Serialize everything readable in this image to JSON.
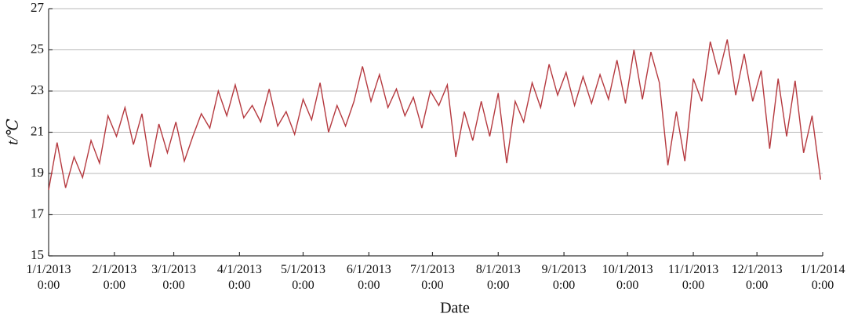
{
  "chart_data": {
    "type": "line",
    "xlabel": "Date",
    "ylabel": "t/℃",
    "x": [
      "2013-01-01",
      "2013-01-05",
      "2013-01-09",
      "2013-01-13",
      "2013-01-17",
      "2013-01-21",
      "2013-01-25",
      "2013-01-29",
      "2013-02-02",
      "2013-02-06",
      "2013-02-10",
      "2013-02-14",
      "2013-02-18",
      "2013-02-22",
      "2013-02-26",
      "2013-03-02",
      "2013-03-06",
      "2013-03-10",
      "2013-03-14",
      "2013-03-18",
      "2013-03-22",
      "2013-03-26",
      "2013-03-30",
      "2013-04-03",
      "2013-04-07",
      "2013-04-11",
      "2013-04-15",
      "2013-04-19",
      "2013-04-23",
      "2013-04-27",
      "2013-05-01",
      "2013-05-05",
      "2013-05-09",
      "2013-05-13",
      "2013-05-17",
      "2013-05-21",
      "2013-05-25",
      "2013-05-29",
      "2013-06-02",
      "2013-06-06",
      "2013-06-10",
      "2013-06-14",
      "2013-06-18",
      "2013-06-22",
      "2013-06-26",
      "2013-06-30",
      "2013-07-04",
      "2013-07-08",
      "2013-07-12",
      "2013-07-16",
      "2013-07-20",
      "2013-07-24",
      "2013-07-28",
      "2013-08-01",
      "2013-08-05",
      "2013-08-09",
      "2013-08-13",
      "2013-08-17",
      "2013-08-21",
      "2013-08-25",
      "2013-08-29",
      "2013-09-02",
      "2013-09-06",
      "2013-09-10",
      "2013-09-14",
      "2013-09-18",
      "2013-09-22",
      "2013-09-26",
      "2013-09-30",
      "2013-10-04",
      "2013-10-08",
      "2013-10-12",
      "2013-10-16",
      "2013-10-20",
      "2013-10-24",
      "2013-10-28",
      "2013-11-01",
      "2013-11-05",
      "2013-11-09",
      "2013-11-13",
      "2013-11-17",
      "2013-11-21",
      "2013-11-25",
      "2013-11-29",
      "2013-12-03",
      "2013-12-07",
      "2013-12-11",
      "2013-12-15",
      "2013-12-19",
      "2013-12-23",
      "2013-12-27",
      "2013-12-31"
    ],
    "series": [
      {
        "color": "#b5393f",
        "values": [
          18.2,
          20.5,
          18.3,
          19.8,
          18.8,
          20.6,
          19.5,
          21.8,
          20.8,
          22.2,
          20.4,
          21.9,
          19.3,
          21.4,
          20.0,
          21.5,
          19.6,
          20.8,
          21.9,
          21.2,
          23.0,
          21.8,
          23.3,
          21.7,
          22.3,
          21.5,
          23.1,
          21.3,
          22.0,
          20.9,
          22.6,
          21.6,
          23.4,
          21.0,
          22.3,
          21.3,
          22.5,
          24.2,
          22.5,
          23.8,
          22.2,
          23.1,
          21.8,
          22.7,
          21.2,
          23.0,
          22.3,
          23.3,
          19.8,
          22.0,
          20.6,
          22.5,
          20.8,
          22.9,
          19.5,
          22.5,
          21.5,
          23.4,
          22.2,
          24.3,
          22.8,
          23.9,
          22.3,
          23.7,
          22.4,
          23.8,
          22.6,
          24.5,
          22.4,
          25.0,
          22.6,
          24.9,
          23.4,
          19.4,
          22.0,
          19.6,
          23.6,
          22.5,
          25.4,
          23.8,
          25.5,
          22.8,
          24.8,
          22.5,
          24.0,
          20.2,
          23.6,
          20.8,
          23.5,
          20.0,
          21.8,
          18.7
        ]
      }
    ],
    "xlim": [
      "2013-01-01",
      "2014-01-01"
    ],
    "xticks": [
      {
        "value": "2013-01-01",
        "label": [
          "1/1/2013",
          "0:00"
        ]
      },
      {
        "value": "2013-02-01",
        "label": [
          "2/1/2013",
          "0:00"
        ]
      },
      {
        "value": "2013-03-01",
        "label": [
          "3/1/2013",
          "0:00"
        ]
      },
      {
        "value": "2013-04-01",
        "label": [
          "4/1/2013",
          "0:00"
        ]
      },
      {
        "value": "2013-05-01",
        "label": [
          "5/1/2013",
          "0:00"
        ]
      },
      {
        "value": "2013-06-01",
        "label": [
          "6/1/2013",
          "0:00"
        ]
      },
      {
        "value": "2013-07-01",
        "label": [
          "7/1/2013",
          "0:00"
        ]
      },
      {
        "value": "2013-08-01",
        "label": [
          "8/1/2013",
          "0:00"
        ]
      },
      {
        "value": "2013-09-01",
        "label": [
          "9/1/2013",
          "0:00"
        ]
      },
      {
        "value": "2013-10-01",
        "label": [
          "10/1/2013",
          "0:00"
        ]
      },
      {
        "value": "2013-11-01",
        "label": [
          "11/1/2013",
          "0:00"
        ]
      },
      {
        "value": "2013-12-01",
        "label": [
          "12/1/2013",
          "0:00"
        ]
      },
      {
        "value": "2014-01-01",
        "label": [
          "1/1/2014",
          "0:00"
        ]
      }
    ],
    "ylim": [
      15,
      27
    ],
    "yticks": [
      15,
      17,
      19,
      21,
      23,
      25,
      27
    ],
    "grid": true
  }
}
